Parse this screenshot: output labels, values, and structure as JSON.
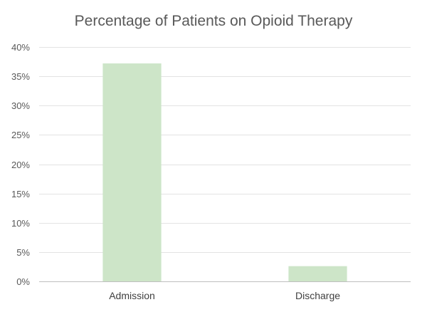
{
  "chart_data": {
    "type": "bar",
    "title": "Percentage of Patients on Opioid Therapy",
    "xlabel": "",
    "ylabel": "",
    "categories": [
      "Admission",
      "Discharge"
    ],
    "values": [
      37.2,
      2.6
    ],
    "ylim": [
      0,
      40
    ],
    "yticks": [
      0,
      5,
      10,
      15,
      20,
      25,
      30,
      35,
      40
    ],
    "ytick_labels": [
      "0%",
      "5%",
      "10%",
      "15%",
      "20%",
      "25%",
      "30%",
      "35%",
      "40%"
    ],
    "grid": true,
    "legend": "none",
    "bar_color": "#cde5c8"
  }
}
